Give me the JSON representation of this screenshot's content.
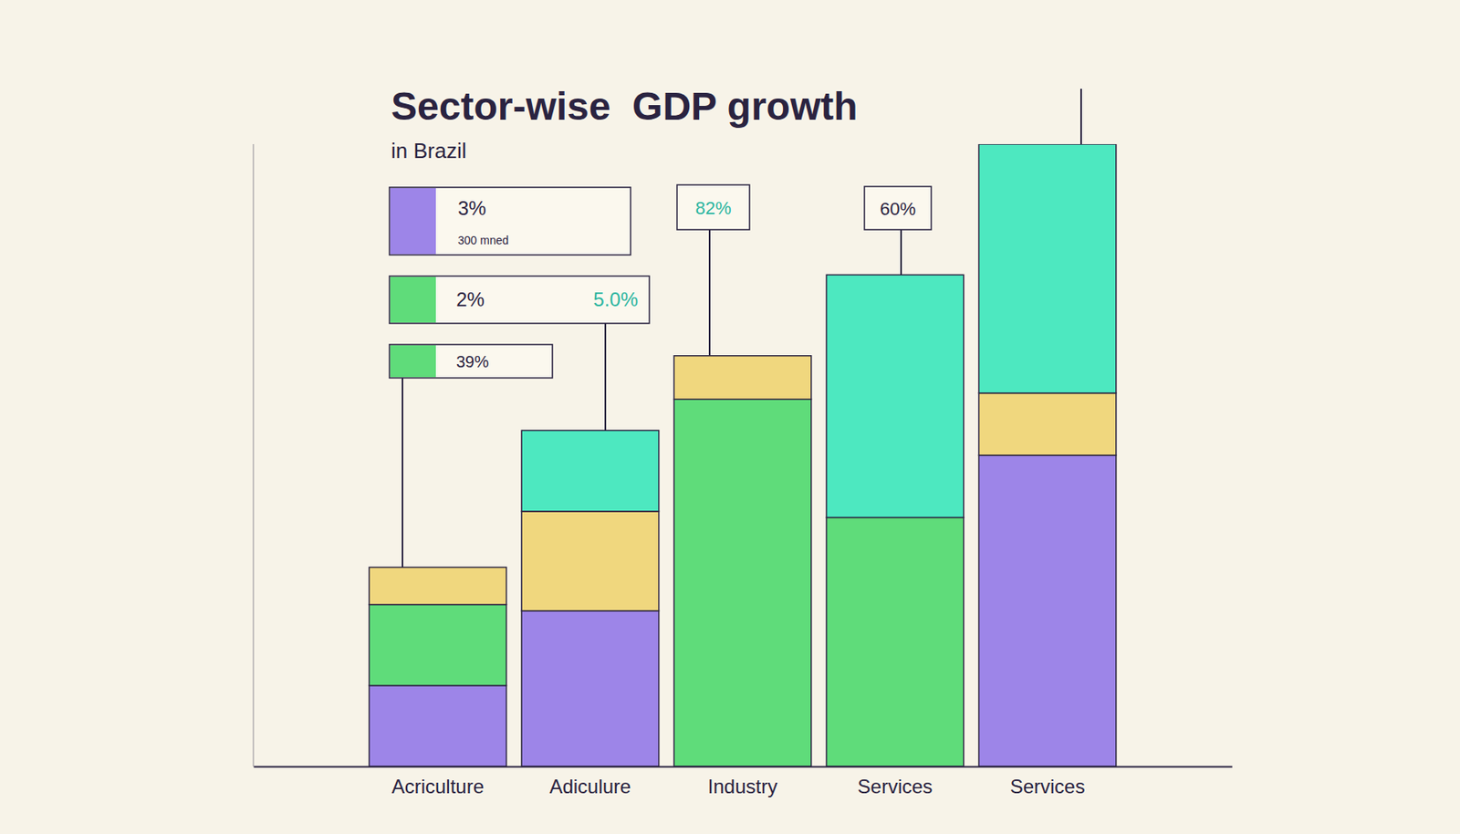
{
  "chart_data": {
    "type": "bar",
    "title": "Sector-wise  GDP growth",
    "subtitle": "in Brazil",
    "categories": [
      "Acriculture",
      "Adiculure",
      "Industry",
      "Services",
      "Services"
    ],
    "series": [
      {
        "color": "#9d85e8",
        "values": [
          13,
          25,
          0,
          0,
          50
        ]
      },
      {
        "color": "#5fdc7a",
        "values": [
          13,
          0,
          59,
          40,
          0
        ]
      },
      {
        "color": "#f0d77e",
        "values": [
          6,
          16,
          7,
          0,
          10
        ]
      },
      {
        "color": "#4de8c0",
        "values": [
          0,
          13,
          0,
          39,
          40
        ]
      }
    ],
    "stacked": true,
    "ylim": [
      0,
      100
    ],
    "tick_labels": "x",
    "annotations": [
      "3%",
      "300 mned",
      "2%",
      "5.0%",
      "39%",
      "82%",
      "60%"
    ]
  }
}
